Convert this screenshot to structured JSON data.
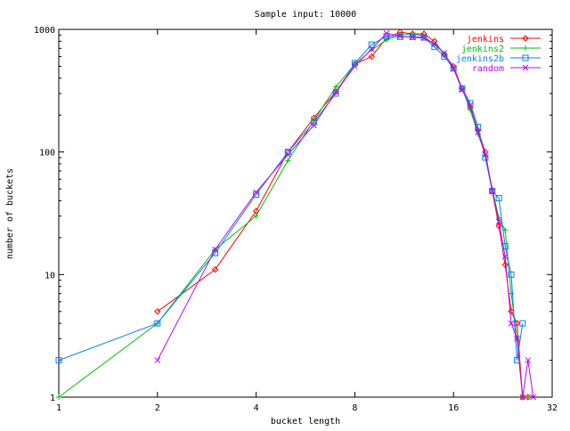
{
  "chart_data": {
    "type": "line",
    "title": "Sample input: 10000",
    "xlabel": "bucket length",
    "ylabel": "number of buckets",
    "xscale": "log2",
    "yscale": "log10",
    "xlim": [
      1,
      32
    ],
    "ylim": [
      1,
      1000
    ],
    "xticks": [
      1,
      2,
      4,
      8,
      16,
      32
    ],
    "yticks": [
      1,
      10,
      100,
      1000
    ],
    "grid": false,
    "legend_position": "top-right",
    "series": [
      {
        "name": "jenkins",
        "color": "#ff0000",
        "marker": "diamond",
        "x": [
          2,
          3,
          4,
          5,
          6,
          7,
          8,
          9,
          10,
          11,
          12,
          13,
          14,
          15,
          16,
          17,
          18,
          19,
          20,
          21,
          22,
          23,
          24,
          25,
          26,
          27
        ],
        "y": [
          5,
          11,
          33,
          100,
          190,
          310,
          520,
          600,
          850,
          950,
          920,
          920,
          800,
          620,
          500,
          330,
          230,
          150,
          100,
          48,
          25,
          12,
          5,
          4,
          1,
          1
        ]
      },
      {
        "name": "jenkins2",
        "color": "#00c000",
        "marker": "plus",
        "x": [
          1,
          2,
          3,
          4,
          5,
          6,
          7,
          8,
          9,
          10,
          11,
          12,
          13,
          14,
          15,
          16,
          17,
          18,
          19,
          20,
          21,
          22,
          23,
          24,
          25,
          26,
          27
        ],
        "y": [
          1,
          4,
          16,
          30,
          85,
          180,
          340,
          520,
          680,
          820,
          900,
          920,
          880,
          750,
          640,
          480,
          330,
          220,
          140,
          95,
          50,
          29,
          23,
          7,
          3,
          1,
          1
        ]
      },
      {
        "name": "jenkins2b",
        "color": "#0080ff",
        "marker": "square",
        "x": [
          1,
          2,
          3,
          4,
          5,
          6,
          7,
          8,
          9,
          10,
          11,
          12,
          13,
          14,
          15,
          16,
          17,
          18,
          19,
          20,
          21,
          22,
          23,
          24,
          25,
          26
        ],
        "y": [
          2,
          4,
          15,
          45,
          100,
          175,
          300,
          530,
          750,
          880,
          870,
          870,
          860,
          720,
          600,
          480,
          330,
          250,
          160,
          90,
          48,
          42,
          17,
          10,
          2,
          4
        ]
      },
      {
        "name": "random",
        "color": "#c000ff",
        "marker": "x",
        "x": [
          2,
          3,
          4,
          5,
          6,
          7,
          8,
          9,
          10,
          11,
          12,
          13,
          14,
          15,
          16,
          17,
          18,
          19,
          20,
          21,
          22,
          23,
          24,
          25,
          26,
          27,
          28
        ],
        "y": [
          2,
          16,
          47,
          95,
          165,
          310,
          500,
          690,
          930,
          880,
          860,
          850,
          760,
          640,
          480,
          320,
          240,
          145,
          95,
          48,
          27,
          14,
          4,
          3,
          1,
          2,
          1
        ]
      }
    ]
  }
}
